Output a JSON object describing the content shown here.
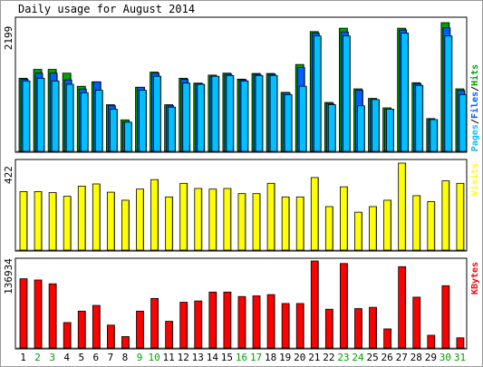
{
  "title": "Daily usage for August 2014",
  "colors": {
    "background": "#ffffff",
    "panel_bg": "#ffffff",
    "border": "#000000",
    "hits": "#00a000",
    "files": "#0060ff",
    "pages": "#00c0ff",
    "visits": "#ffff00",
    "kbytes": "#ff0000",
    "weekend_label": "#00a000",
    "weekday_label": "#000000"
  },
  "chart_data": [
    {
      "type": "bar",
      "title": "Daily usage for August 2014",
      "max_label": "2199",
      "ylim": [
        0,
        2199
      ],
      "legend": [
        "Pages",
        "Files",
        "Hits"
      ],
      "legend_colors": [
        "#00c0ff",
        "#0060ff",
        "#00a000"
      ],
      "categories": [
        "1",
        "2",
        "3",
        "4",
        "5",
        "6",
        "7",
        "8",
        "9",
        "10",
        "11",
        "12",
        "13",
        "14",
        "15",
        "16",
        "17",
        "18",
        "19",
        "20",
        "21",
        "22",
        "23",
        "24",
        "25",
        "26",
        "27",
        "28",
        "29",
        "30",
        "31"
      ],
      "weekend_days": [
        2,
        3,
        9,
        10,
        16,
        17,
        23,
        24,
        30,
        31
      ],
      "series": [
        {
          "name": "Hits",
          "values": [
            1249,
            1400,
            1400,
            1336,
            1112,
            1188,
            797,
            538,
            1095,
            1354,
            797,
            1249,
            1166,
            1303,
            1336,
            1234,
            1331,
            1331,
            1008,
            1484,
            2047,
            836,
            2104,
            1068,
            905,
            743,
            2104,
            1173,
            560,
            2199,
            1068
          ]
        },
        {
          "name": "Files",
          "values": [
            1229,
            1336,
            1336,
            1221,
            1063,
            1188,
            778,
            499,
            1095,
            1336,
            778,
            1229,
            1159,
            1283,
            1316,
            1221,
            1316,
            1316,
            1002,
            1432,
            2021,
            817,
            2040,
            1044,
            885,
            721,
            2074,
            1156,
            543,
            2110,
            1040
          ]
        },
        {
          "name": "Pages",
          "values": [
            1203,
            1249,
            1203,
            1146,
            1002,
            1044,
            721,
            499,
            1044,
            1283,
            754,
            1166,
            1146,
            1283,
            1296,
            1203,
            1296,
            1296,
            969,
            1112,
            1972,
            797,
            1972,
            778,
            885,
            721,
            2022,
            1126,
            543,
            1972,
            971
          ]
        }
      ]
    },
    {
      "type": "bar",
      "max_label": "422",
      "ylim": [
        0,
        422
      ],
      "legend": [
        "Visits"
      ],
      "legend_colors": [
        "#ffff00"
      ],
      "categories": [
        "1",
        "2",
        "3",
        "4",
        "5",
        "6",
        "7",
        "8",
        "9",
        "10",
        "11",
        "12",
        "13",
        "14",
        "15",
        "16",
        "17",
        "18",
        "19",
        "20",
        "21",
        "22",
        "23",
        "24",
        "25",
        "26",
        "27",
        "28",
        "29",
        "30",
        "31"
      ],
      "series": [
        {
          "name": "Visits",
          "values": [
            284,
            284,
            279,
            261,
            310,
            321,
            281,
            242,
            296,
            342,
            258,
            324,
            299,
            296,
            299,
            274,
            274,
            324,
            258,
            258,
            352,
            211,
            307,
            184,
            211,
            242,
            422,
            264,
            235,
            336,
            324
          ]
        }
      ]
    },
    {
      "type": "bar",
      "max_label": "136934",
      "ylim": [
        0,
        136934
      ],
      "legend": [
        "KBytes"
      ],
      "legend_colors": [
        "#ff0000"
      ],
      "categories": [
        "1",
        "2",
        "3",
        "4",
        "5",
        "6",
        "7",
        "8",
        "9",
        "10",
        "11",
        "12",
        "13",
        "14",
        "15",
        "16",
        "17",
        "18",
        "19",
        "20",
        "21",
        "22",
        "23",
        "24",
        "25",
        "26",
        "27",
        "28",
        "29",
        "30",
        "31"
      ],
      "series": [
        {
          "name": "KBytes",
          "values": [
            109000,
            107000,
            101000,
            40000,
            58000,
            67000,
            36000,
            18000,
            58000,
            78000,
            42000,
            72000,
            74000,
            88000,
            88000,
            81000,
            82000,
            84000,
            70000,
            70000,
            136934,
            61000,
            133000,
            62000,
            64000,
            30000,
            128000,
            80000,
            20000,
            98000,
            16000
          ]
        }
      ]
    }
  ]
}
